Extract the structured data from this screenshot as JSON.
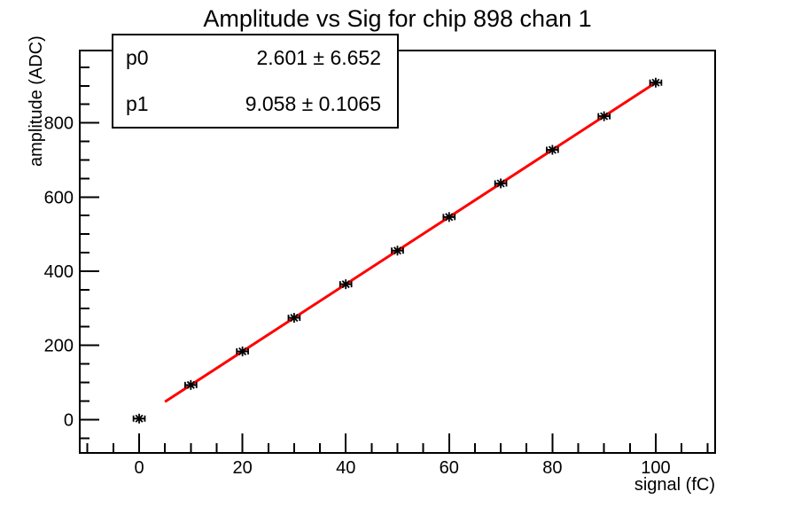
{
  "window": {
    "background": "#ffffff"
  },
  "chart_data": {
    "type": "scatter",
    "title": "Amplitude vs Sig for chip 898 chan 1",
    "xlabel": "signal (fC)",
    "ylabel": "amplitude (ADC)",
    "xlim": [
      -11.5,
      111.5
    ],
    "ylim": [
      -90,
      995
    ],
    "x_major_ticks": [
      0,
      20,
      40,
      60,
      80,
      100
    ],
    "x_minor_step": 5,
    "y_major_ticks": [
      0,
      200,
      400,
      600,
      800
    ],
    "y_minor_step": 50,
    "grid": false,
    "legend": false,
    "axis_color": "#000000",
    "series": [
      {
        "name": "data",
        "marker": "asterisk-with-xerr",
        "color": "#000000",
        "x": [
          0,
          10,
          20,
          30,
          40,
          50,
          60,
          70,
          80,
          90,
          100
        ],
        "y": [
          2.6,
          93.2,
          183.8,
          274.3,
          364.9,
          455.5,
          546.1,
          636.7,
          727.2,
          817.8,
          908.4
        ],
        "xerr": 1.1
      }
    ],
    "fit": {
      "name": "linear-fit",
      "expression": "p0 + p1*x",
      "p0": 2.601,
      "p1": 9.058,
      "x_range": [
        5,
        100
      ],
      "color": "#ff0000",
      "line_width": 3
    }
  },
  "stats_box": {
    "rows": [
      {
        "name": "p0",
        "value": "2.601 ± 6.652"
      },
      {
        "name": "p1",
        "value": "9.058 ± 0.1065"
      }
    ]
  }
}
